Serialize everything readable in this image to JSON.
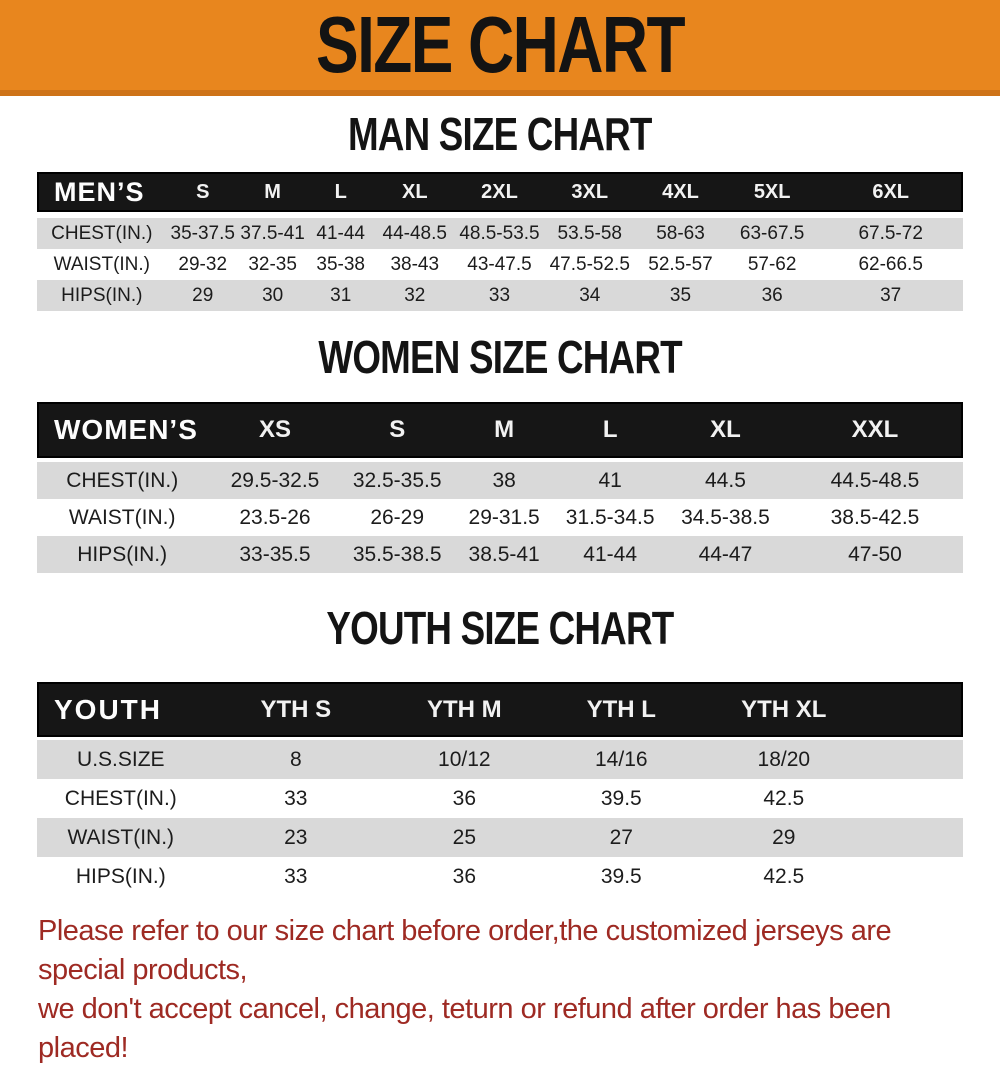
{
  "banner": {
    "title": "SIZE CHART",
    "bg_color": "#E8861E",
    "text_color": "#131313"
  },
  "sections": [
    {
      "id": "men",
      "heading": "MAN SIZE CHART",
      "table": {
        "header_label": "MEN’S",
        "columns": [
          "S",
          "M",
          "L",
          "XL",
          "2XL",
          "3XL",
          "4XL",
          "5XL",
          "6XL"
        ],
        "rows": [
          {
            "label": "CHEST(IN.)",
            "values": [
              "35-37.5",
              "37.5-41",
              "41-44",
              "44-48.5",
              "48.5-53.5",
              "53.5-58",
              "58-63",
              "63-67.5",
              "67.5-72"
            ]
          },
          {
            "label": "WAIST(IN.)",
            "values": [
              "29-32",
              "32-35",
              "35-38",
              "38-43",
              "43-47.5",
              "47.5-52.5",
              "52.5-57",
              "57-62",
              "62-66.5"
            ]
          },
          {
            "label": "HIPS(IN.)",
            "values": [
              "29",
              "30",
              "31",
              "32",
              "33",
              "34",
              "35",
              "36",
              "37"
            ]
          }
        ]
      }
    },
    {
      "id": "women",
      "heading": "WOMEN SIZE CHART",
      "table": {
        "header_label": "WOMEN’S",
        "columns": [
          "XS",
          "S",
          "M",
          "L",
          "XL",
          "XXL"
        ],
        "rows": [
          {
            "label": "CHEST(IN.)",
            "values": [
              "29.5-32.5",
              "32.5-35.5",
              "38",
              "41",
              "44.5",
              "44.5-48.5"
            ]
          },
          {
            "label": "WAIST(IN.)",
            "values": [
              "23.5-26",
              "26-29",
              "29-31.5",
              "31.5-34.5",
              "34.5-38.5",
              "38.5-42.5"
            ]
          },
          {
            "label": "HIPS(IN.)",
            "values": [
              "33-35.5",
              "35.5-38.5",
              "38.5-41",
              "41-44",
              "44-47",
              "47-50"
            ]
          }
        ]
      }
    },
    {
      "id": "youth",
      "heading": "YOUTH SIZE CHART",
      "table": {
        "header_label": "YOUTH",
        "columns": [
          "YTH S",
          "YTH M",
          "YTH L",
          "YTH XL"
        ],
        "rows": [
          {
            "label": "U.S.SIZE",
            "values": [
              "8",
              "10/12",
              "14/16",
              "18/20"
            ]
          },
          {
            "label": "CHEST(IN.)",
            "values": [
              "33",
              "36",
              "39.5",
              "42.5"
            ]
          },
          {
            "label": "WAIST(IN.)",
            "values": [
              "23",
              "25",
              "27",
              "29"
            ]
          },
          {
            "label": "HIPS(IN.)",
            "values": [
              "33",
              "36",
              "39.5",
              "42.5"
            ]
          }
        ]
      }
    }
  ],
  "footer": {
    "color": "#9E2A23",
    "lines": [
      "Please refer to our size chart before order,the customized jerseys are special products,",
      "we don't accept cancel, change, teturn or refund after order has been placed!"
    ]
  }
}
